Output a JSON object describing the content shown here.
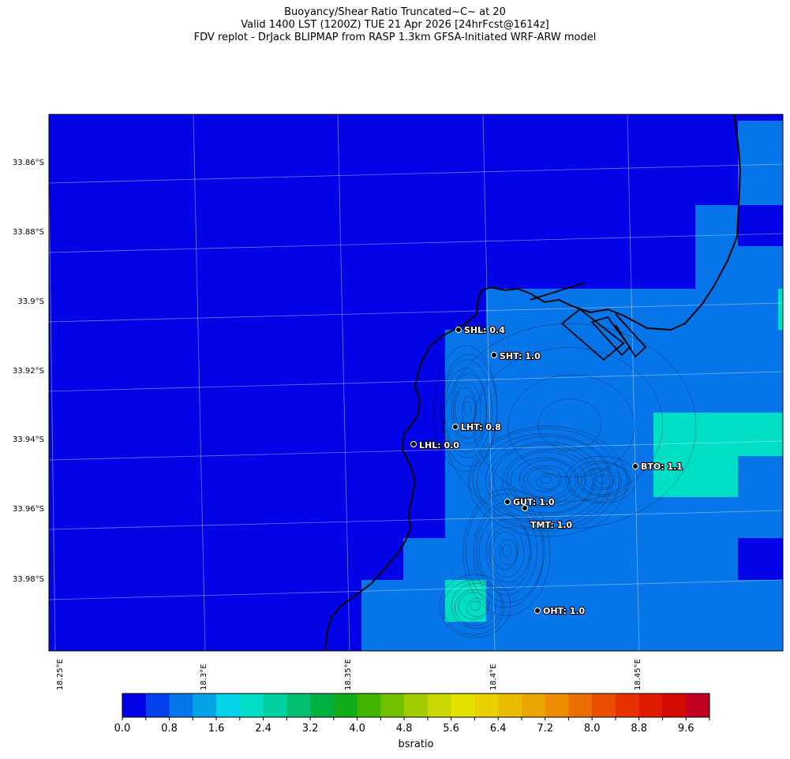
{
  "titles": {
    "line1": "Buoyancy/Shear Ratio Truncated~C~    at 20",
    "line2": "Valid 1400 LST (1200Z) TUE 21 Apr 2026 [24hrFcst@1614z]",
    "line3": "FDV replot - DrJack BLIPMAP from RASP 1.3km GFSA-Initiated WRF-ARW model"
  },
  "axes": {
    "lat_labels": [
      "33.86°S",
      "33.88°S",
      "33.9°S",
      "33.92°S",
      "33.94°S",
      "33.96°S",
      "33.98°S"
    ],
    "lon_labels": [
      "18.25°E",
      "18.3°E",
      "18.35°E",
      "18.4°E",
      "18.45°E"
    ]
  },
  "colorbar": {
    "label": "bsratio",
    "ticks": [
      "0.0",
      "0.8",
      "1.6",
      "2.4",
      "3.2",
      "4.0",
      "4.8",
      "5.6",
      "6.4",
      "7.2",
      "8.0",
      "8.8",
      "9.6"
    ],
    "colors": [
      "#0303e8",
      "#0440eb",
      "#0575e9",
      "#04a4e6",
      "#03d2e8",
      "#00dec6",
      "#00d0a0",
      "#00c070",
      "#00b040",
      "#10ac1a",
      "#40b400",
      "#70c000",
      "#a0cc00",
      "#c8d800",
      "#e4e000",
      "#ead000",
      "#ecbc00",
      "#eca600",
      "#ec8c00",
      "#ec6e00",
      "#ea5000",
      "#e63200",
      "#e01a00",
      "#d40a00",
      "#c00020"
    ]
  },
  "sites": [
    {
      "code": "SHL",
      "value": "0.4",
      "label": "SHL: 0.4"
    },
    {
      "code": "SHT",
      "value": "1.0",
      "label": "SHT: 1.0"
    },
    {
      "code": "LHT",
      "value": "0.8",
      "label": "LHT: 0.8"
    },
    {
      "code": "LHL",
      "value": "0.0",
      "label": "LHL: 0.0"
    },
    {
      "code": "BTO",
      "value": "1.1",
      "label": "BTO: 1.1"
    },
    {
      "code": "GUT",
      "value": "1.0",
      "label": "GUT: 1.0"
    },
    {
      "code": "TMT",
      "value": "1.0",
      "label": "TMT: 1.0"
    },
    {
      "code": "OHT",
      "value": "1.0",
      "label": "OHT: 1.0"
    }
  ],
  "field_colors": {
    "low": "#0303e8",
    "mid": "#0575e9",
    "high": "#00dec6"
  }
}
